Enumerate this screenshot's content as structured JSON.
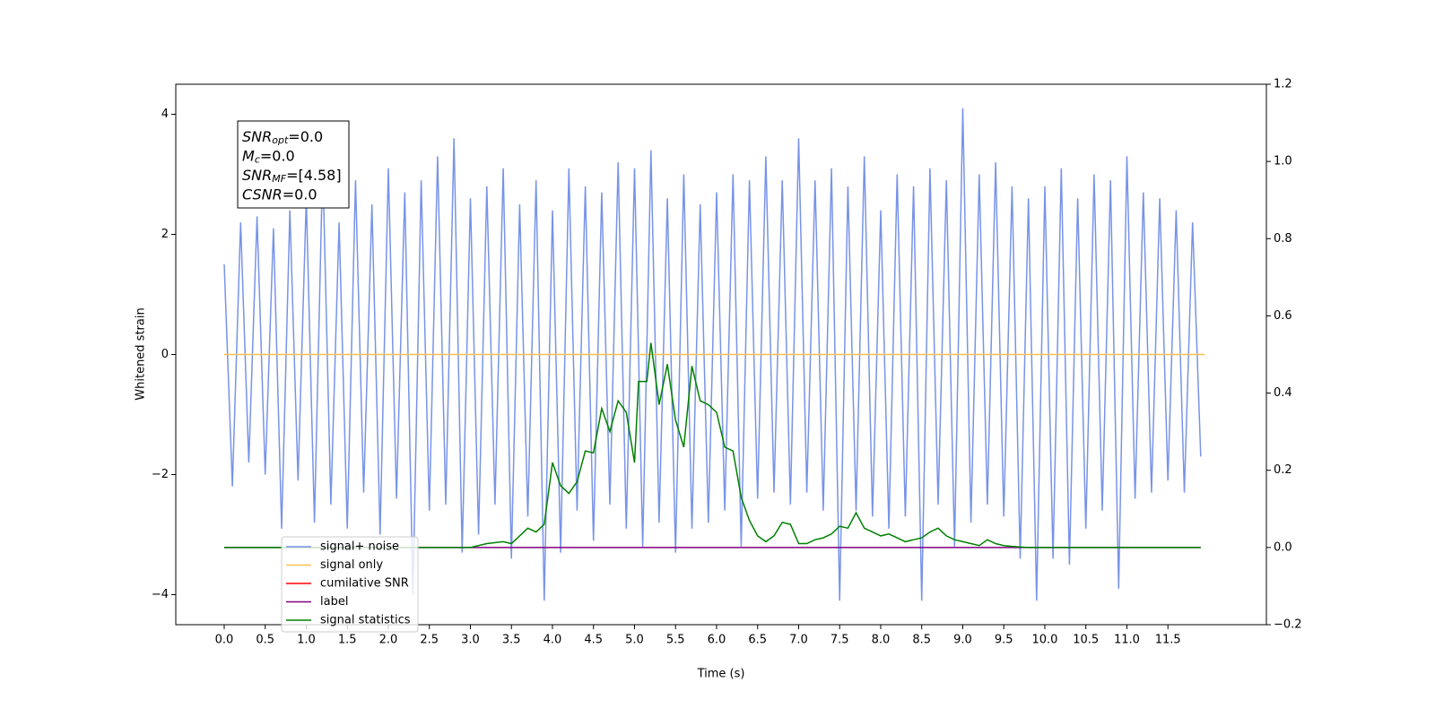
{
  "chart_data": {
    "type": "line",
    "xlabel": "Time (s)",
    "ylabel": "Whitened strain",
    "xlim": [
      -0.59,
      12.7
    ],
    "xticks": [
      {
        "value": 0,
        "label": "0.0"
      },
      0.5,
      {
        "value": 1,
        "label": "1.0"
      },
      1.5,
      {
        "value": 2,
        "label": "2.0"
      },
      2.5,
      {
        "value": 3,
        "label": "3.0"
      },
      3.5,
      {
        "value": 4,
        "label": "4.0"
      },
      4.5,
      {
        "value": 5,
        "label": "5.0"
      },
      5.5,
      {
        "value": 6,
        "label": "6.0"
      },
      6.5,
      {
        "value": 7,
        "label": "7.0"
      },
      7.5,
      {
        "value": 8,
        "label": "8.0"
      },
      8.5,
      {
        "value": 9,
        "label": "9.0"
      },
      9.5,
      {
        "value": 10,
        "label": "10.0"
      },
      10.5,
      {
        "value": 11,
        "label": "11.0"
      },
      11.5
    ],
    "ylim": [
      -4.5,
      4.5
    ],
    "yticks": [
      {
        "value": -4,
        "label": "−4"
      },
      {
        "value": -2,
        "label": "−2"
      },
      0,
      2,
      4
    ],
    "y2lim": [
      -0.2,
      1.2
    ],
    "y2ticks": [
      {
        "value": -0.2,
        "label": "−0.2"
      },
      {
        "value": 0,
        "label": "0.0"
      },
      0.2,
      0.4,
      0.6,
      0.8,
      {
        "value": 1,
        "label": "1.0"
      },
      1.2
    ],
    "annotation": [
      {
        "text": "SNR",
        "sub": "opt",
        "rest": "=0.0"
      },
      {
        "text": "M",
        "sub": "c",
        "rest": "=0.0"
      },
      {
        "text": "SNR",
        "sub": "MF",
        "rest": "=[4.58]"
      },
      {
        "text": "CSNR",
        "rest": "=0.0"
      }
    ],
    "legend": "lower left",
    "series": [
      {
        "name": "signal+ noise",
        "color": "#7893e8",
        "axis": "y",
        "x": [
          0,
          0.1,
          0.2,
          0.3,
          0.4,
          0.5,
          0.6,
          0.7,
          0.8,
          0.9,
          1.0,
          1.1,
          1.2,
          1.3,
          1.4,
          1.5,
          1.6,
          1.7,
          1.8,
          1.9,
          2.0,
          2.1,
          2.2,
          2.3,
          2.4,
          2.5,
          2.6,
          2.7,
          2.8,
          2.9,
          3.0,
          3.1,
          3.2,
          3.3,
          3.4,
          3.5,
          3.6,
          3.7,
          3.8,
          3.9,
          4.0,
          4.1,
          4.2,
          4.3,
          4.4,
          4.5,
          4.6,
          4.7,
          4.8,
          4.9,
          5.0,
          5.1,
          5.2,
          5.3,
          5.4,
          5.5,
          5.6,
          5.7,
          5.8,
          5.9,
          6.0,
          6.1,
          6.2,
          6.3,
          6.4,
          6.5,
          6.6,
          6.7,
          6.8,
          6.9,
          7.0,
          7.1,
          7.2,
          7.3,
          7.4,
          7.5,
          7.6,
          7.7,
          7.8,
          7.9,
          8.0,
          8.1,
          8.2,
          8.3,
          8.4,
          8.5,
          8.6,
          8.7,
          8.8,
          8.9,
          9.0,
          9.1,
          9.2,
          9.3,
          9.4,
          9.5,
          9.6,
          9.7,
          9.8,
          9.9,
          10.0,
          10.1,
          10.2,
          10.3,
          10.4,
          10.5,
          10.6,
          10.7,
          10.8,
          10.9,
          11.0,
          11.1,
          11.2,
          11.3,
          11.4,
          11.5,
          11.6,
          11.7,
          11.8,
          11.9
        ],
        "values": [
          1.5,
          -2.2,
          2.2,
          -1.8,
          2.3,
          -2.0,
          2.1,
          -2.9,
          2.4,
          -2.1,
          2.6,
          -2.8,
          3.2,
          -2.5,
          2.2,
          -2.9,
          2.9,
          -2.3,
          2.5,
          -3.0,
          3.1,
          -2.4,
          2.7,
          -4.0,
          2.9,
          -2.6,
          3.3,
          -2.5,
          3.6,
          -3.3,
          2.6,
          -3.0,
          2.8,
          -2.5,
          3.1,
          -3.4,
          2.5,
          -2.7,
          2.9,
          -4.1,
          2.4,
          -3.3,
          3.1,
          -2.6,
          2.8,
          -3.1,
          2.7,
          -2.5,
          3.2,
          -2.9,
          3.1,
          -3.2,
          3.4,
          -2.8,
          2.6,
          -3.3,
          3.0,
          -2.9,
          2.5,
          -2.8,
          2.7,
          -2.6,
          3.0,
          -3.2,
          2.9,
          -2.4,
          3.3,
          -2.3,
          2.9,
          -2.5,
          3.6,
          -2.3,
          2.9,
          -2.6,
          3.1,
          -4.1,
          2.8,
          -2.6,
          3.3,
          -2.7,
          2.4,
          -2.9,
          3.0,
          -2.7,
          2.8,
          -4.1,
          3.1,
          -2.5,
          2.9,
          -3.2,
          4.1,
          -2.8,
          3.0,
          -2.5,
          3.2,
          -2.7,
          2.8,
          -3.4,
          2.6,
          -4.1,
          2.8,
          -3.4,
          3.1,
          -3.5,
          2.6,
          -2.9,
          3.0,
          -2.6,
          2.9,
          -3.9,
          3.3,
          -2.4,
          2.7,
          -2.3,
          2.6,
          -2.1,
          2.4,
          -2.3,
          2.2,
          -1.7
        ]
      },
      {
        "name": "signal only",
        "color": "#ffc04d",
        "axis": "y",
        "x": [
          0,
          11.95
        ],
        "values": [
          0,
          0
        ]
      },
      {
        "name": "cumilative SNR",
        "color": "#ff0000",
        "axis": "y2",
        "x": [],
        "values": []
      },
      {
        "name": "label",
        "color": "#800080",
        "axis": "y2",
        "x": [
          0,
          11.9
        ],
        "values": [
          0,
          0
        ]
      },
      {
        "name": "signal statistics",
        "color": "#008000",
        "axis": "y2",
        "x": [
          0,
          2.4,
          3.0,
          3.2,
          3.4,
          3.5,
          3.6,
          3.7,
          3.8,
          3.9,
          4.0,
          4.1,
          4.2,
          4.3,
          4.4,
          4.5,
          4.6,
          4.7,
          4.8,
          4.9,
          5.0,
          5.05,
          5.15,
          5.2,
          5.3,
          5.4,
          5.5,
          5.6,
          5.7,
          5.8,
          5.9,
          6.0,
          6.1,
          6.2,
          6.3,
          6.4,
          6.5,
          6.6,
          6.7,
          6.8,
          6.9,
          7.0,
          7.1,
          7.2,
          7.3,
          7.4,
          7.5,
          7.6,
          7.7,
          7.8,
          7.9,
          8.0,
          8.1,
          8.2,
          8.3,
          8.4,
          8.5,
          8.6,
          8.7,
          8.8,
          8.9,
          9.0,
          9.1,
          9.2,
          9.3,
          9.4,
          9.5,
          9.6,
          9.8,
          11.9
        ],
        "values": [
          0,
          0,
          0,
          0.01,
          0.015,
          0.01,
          0.03,
          0.05,
          0.04,
          0.06,
          0.22,
          0.16,
          0.14,
          0.17,
          0.25,
          0.245,
          0.36,
          0.3,
          0.38,
          0.35,
          0.22,
          0.43,
          0.43,
          0.53,
          0.37,
          0.475,
          0.33,
          0.26,
          0.47,
          0.38,
          0.37,
          0.35,
          0.26,
          0.25,
          0.13,
          0.07,
          0.03,
          0.015,
          0.03,
          0.065,
          0.06,
          0.01,
          0.01,
          0.02,
          0.025,
          0.035,
          0.055,
          0.05,
          0.09,
          0.05,
          0.04,
          0.03,
          0.035,
          0.025,
          0.015,
          0.02,
          0.025,
          0.04,
          0.05,
          0.03,
          0.02,
          0.015,
          0.01,
          0.005,
          0.02,
          0.01,
          0.005,
          0.003,
          0,
          0
        ]
      }
    ]
  }
}
